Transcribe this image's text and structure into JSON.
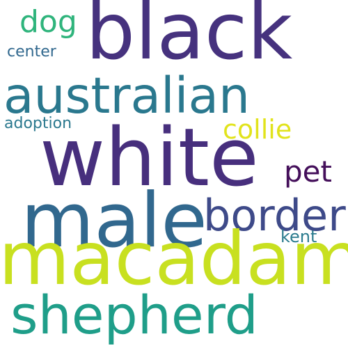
{
  "words": [
    {
      "text": "black",
      "color": "#46327e"
    },
    {
      "text": "dog",
      "color": "#2fb47c"
    },
    {
      "text": "center",
      "color": "#31688e"
    },
    {
      "text": "australian",
      "color": "#2a788e"
    },
    {
      "text": "collie",
      "color": "#e1e31c"
    },
    {
      "text": "adoption",
      "color": "#2a788e"
    },
    {
      "text": "white",
      "color": "#472f7d"
    },
    {
      "text": "pet",
      "color": "#440f5a"
    },
    {
      "text": "male",
      "color": "#31688e"
    },
    {
      "text": "border",
      "color": "#3e4a89"
    },
    {
      "text": "kent",
      "color": "#2b7b8e"
    },
    {
      "text": "macadam",
      "color": "#c8e020"
    },
    {
      "text": "shepherd",
      "color": "#1f9e89"
    }
  ]
}
